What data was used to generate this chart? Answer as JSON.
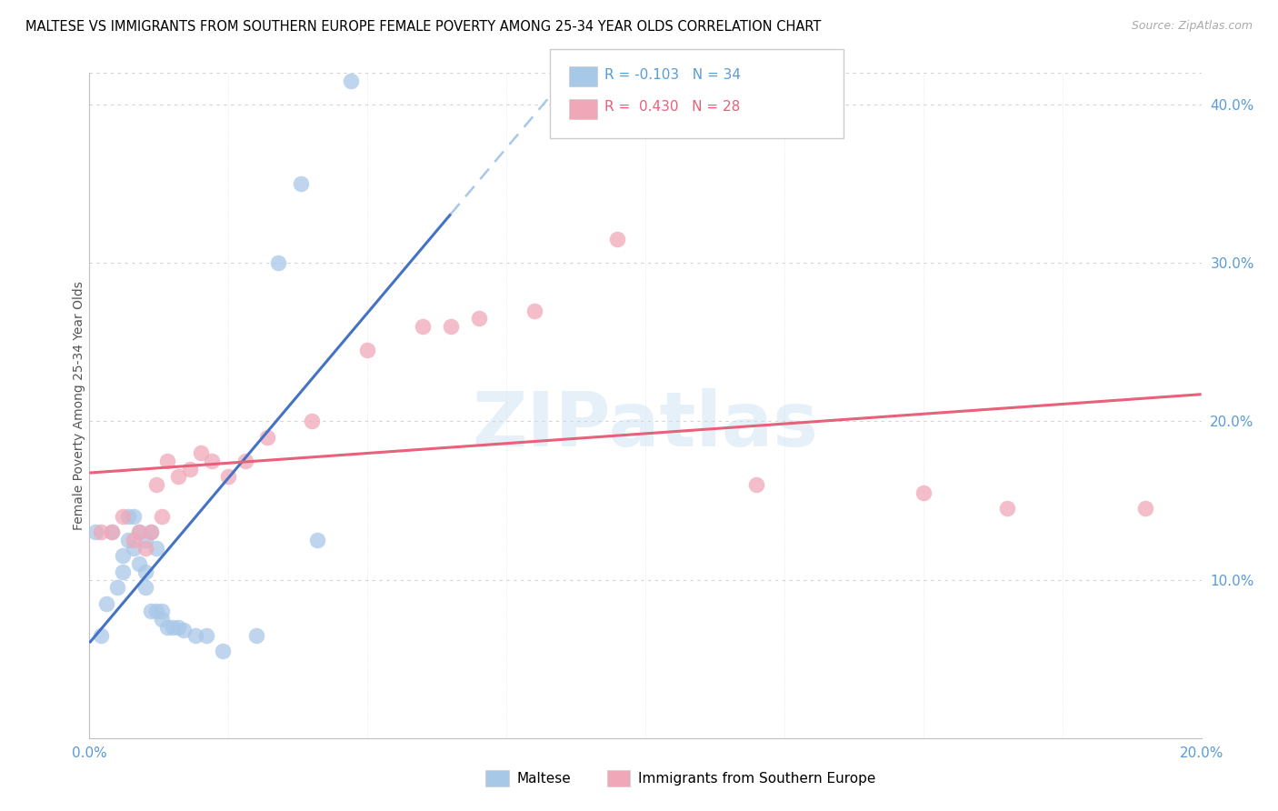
{
  "title": "MALTESE VS IMMIGRANTS FROM SOUTHERN EUROPE FEMALE POVERTY AMONG 25-34 YEAR OLDS CORRELATION CHART",
  "source": "Source: ZipAtlas.com",
  "ylabel": "Female Poverty Among 25-34 Year Olds",
  "xlim": [
    0.0,
    0.2
  ],
  "ylim": [
    0.0,
    0.42
  ],
  "watermark": "ZIPatlas",
  "legend_r1_val": "-0.103",
  "legend_n1_val": "34",
  "legend_r2_val": "0.430",
  "legend_n2_val": "28",
  "maltese_color": "#a8c8e8",
  "immigrants_color": "#f0a8b8",
  "blue_line_color": "#4472c4",
  "pink_line_color": "#e8607a",
  "dashed_line_color": "#a8c8e8",
  "maltese_x": [
    0.001,
    0.002,
    0.003,
    0.004,
    0.005,
    0.006,
    0.006,
    0.007,
    0.007,
    0.008,
    0.008,
    0.009,
    0.009,
    0.01,
    0.01,
    0.01,
    0.011,
    0.011,
    0.012,
    0.012,
    0.013,
    0.013,
    0.014,
    0.015,
    0.016,
    0.017,
    0.019,
    0.021,
    0.024,
    0.03,
    0.034,
    0.038,
    0.041,
    0.047
  ],
  "maltese_y": [
    0.13,
    0.065,
    0.085,
    0.13,
    0.095,
    0.115,
    0.105,
    0.14,
    0.125,
    0.14,
    0.12,
    0.13,
    0.11,
    0.125,
    0.105,
    0.095,
    0.13,
    0.08,
    0.12,
    0.08,
    0.075,
    0.08,
    0.07,
    0.07,
    0.07,
    0.068,
    0.065,
    0.065,
    0.055,
    0.065,
    0.3,
    0.35,
    0.125,
    0.415
  ],
  "immigrants_x": [
    0.002,
    0.004,
    0.006,
    0.008,
    0.009,
    0.01,
    0.011,
    0.012,
    0.013,
    0.014,
    0.016,
    0.018,
    0.02,
    0.022,
    0.025,
    0.028,
    0.032,
    0.04,
    0.05,
    0.06,
    0.065,
    0.07,
    0.08,
    0.095,
    0.12,
    0.15,
    0.165,
    0.19
  ],
  "immigrants_y": [
    0.13,
    0.13,
    0.14,
    0.125,
    0.13,
    0.12,
    0.13,
    0.16,
    0.14,
    0.175,
    0.165,
    0.17,
    0.18,
    0.175,
    0.165,
    0.175,
    0.19,
    0.2,
    0.245,
    0.26,
    0.26,
    0.265,
    0.27,
    0.315,
    0.16,
    0.155,
    0.145,
    0.145
  ]
}
